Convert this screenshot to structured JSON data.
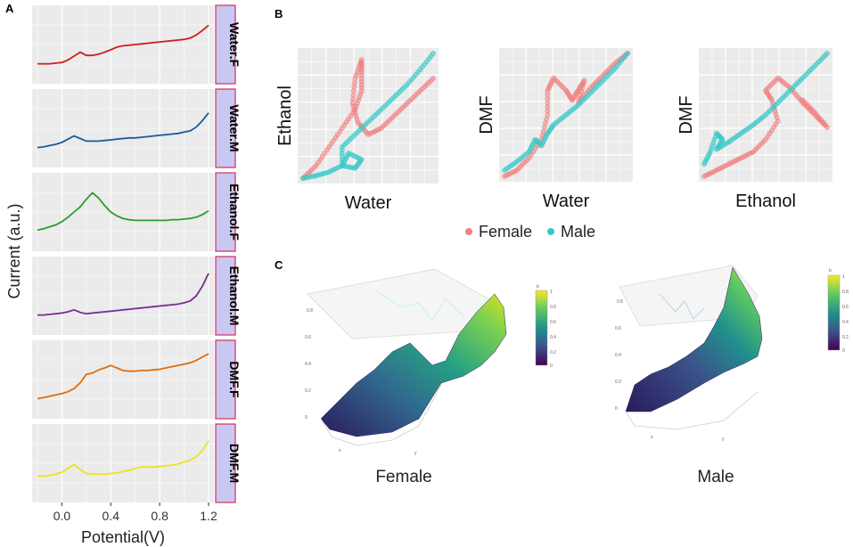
{
  "panel_labels": {
    "a": "A",
    "b": "B",
    "c": "C"
  },
  "panel_a": {
    "xlabel": "Potential(V)",
    "ylabel": "Current (a.u.)",
    "xticks": [
      "0.0",
      "0.4",
      "0.8",
      "1.2"
    ]
  },
  "panel_b": {
    "legend": {
      "female": "Female",
      "male": "Male"
    }
  },
  "panel_c": {
    "surfaces": [
      {
        "title": "Female",
        "colorbar_label": "b",
        "colorbar_ticks": [
          "1",
          "0.8",
          "0.6",
          "0.4",
          "0.2",
          "0"
        ]
      },
      {
        "title": "Male",
        "colorbar_label": "b",
        "colorbar_ticks": [
          "1",
          "0.8",
          "0.6",
          "0.4",
          "0.2",
          "0"
        ]
      }
    ]
  },
  "chart_data": [
    {
      "type": "line",
      "title": "A",
      "xlabel": "Potential(V)",
      "ylabel": "Current (a.u.)",
      "xlim": [
        -0.2,
        1.2
      ],
      "x_ticks": [
        0.0,
        0.4,
        0.8,
        1.2
      ],
      "x": [
        -0.2,
        -0.15,
        -0.1,
        -0.05,
        0.0,
        0.05,
        0.1,
        0.15,
        0.2,
        0.25,
        0.3,
        0.35,
        0.4,
        0.45,
        0.5,
        0.55,
        0.6,
        0.65,
        0.7,
        0.75,
        0.8,
        0.85,
        0.9,
        0.95,
        1.0,
        1.05,
        1.1,
        1.15,
        1.2
      ],
      "series": [
        {
          "name": "Water.F",
          "color": "#cc1f1a",
          "values": [
            0.2,
            0.2,
            0.2,
            0.21,
            0.22,
            0.26,
            0.32,
            0.38,
            0.33,
            0.33,
            0.35,
            0.38,
            0.42,
            0.46,
            0.48,
            0.49,
            0.5,
            0.51,
            0.52,
            0.53,
            0.54,
            0.55,
            0.56,
            0.57,
            0.58,
            0.6,
            0.65,
            0.72,
            0.8
          ]
        },
        {
          "name": "Water.M",
          "color": "#1f5a96",
          "values": [
            0.2,
            0.21,
            0.23,
            0.25,
            0.28,
            0.33,
            0.38,
            0.34,
            0.3,
            0.3,
            0.3,
            0.31,
            0.32,
            0.33,
            0.34,
            0.35,
            0.35,
            0.36,
            0.37,
            0.38,
            0.39,
            0.4,
            0.41,
            0.42,
            0.44,
            0.46,
            0.52,
            0.62,
            0.74
          ]
        },
        {
          "name": "Ethanol.F",
          "color": "#2e9a2e",
          "values": [
            0.22,
            0.24,
            0.27,
            0.3,
            0.35,
            0.42,
            0.5,
            0.58,
            0.7,
            0.8,
            0.72,
            0.6,
            0.5,
            0.44,
            0.4,
            0.38,
            0.37,
            0.37,
            0.37,
            0.37,
            0.37,
            0.37,
            0.38,
            0.38,
            0.39,
            0.4,
            0.42,
            0.46,
            0.52
          ]
        },
        {
          "name": "Ethanol.M",
          "color": "#7b2c8f",
          "values": [
            0.2,
            0.2,
            0.21,
            0.22,
            0.23,
            0.25,
            0.28,
            0.24,
            0.22,
            0.23,
            0.24,
            0.25,
            0.26,
            0.27,
            0.28,
            0.29,
            0.3,
            0.31,
            0.32,
            0.33,
            0.34,
            0.35,
            0.36,
            0.37,
            0.39,
            0.42,
            0.5,
            0.65,
            0.85
          ]
        },
        {
          "name": "DMF.F",
          "color": "#e06c0c",
          "values": [
            0.2,
            0.22,
            0.24,
            0.26,
            0.28,
            0.31,
            0.36,
            0.45,
            0.58,
            0.6,
            0.65,
            0.68,
            0.72,
            0.68,
            0.64,
            0.63,
            0.63,
            0.64,
            0.64,
            0.65,
            0.66,
            0.68,
            0.7,
            0.72,
            0.74,
            0.76,
            0.8,
            0.85,
            0.9
          ]
        },
        {
          "name": "DMF.M",
          "color": "#f2e01e",
          "values": [
            0.3,
            0.3,
            0.31,
            0.33,
            0.36,
            0.42,
            0.48,
            0.4,
            0.34,
            0.33,
            0.33,
            0.33,
            0.34,
            0.35,
            0.37,
            0.39,
            0.42,
            0.44,
            0.44,
            0.44,
            0.45,
            0.46,
            0.47,
            0.49,
            0.52,
            0.55,
            0.6,
            0.7,
            0.85
          ]
        }
      ]
    },
    {
      "type": "scatter",
      "title": "B",
      "panels": [
        {
          "xlabel": "Water",
          "ylabel": "Ethanol",
          "series": [
            {
              "name": "Female",
              "color": "#f08080",
              "x": [
                0.0,
                0.1,
                0.2,
                0.3,
                0.4,
                0.45,
                0.45,
                0.45,
                0.4,
                0.38,
                0.42,
                0.5,
                0.6,
                0.7,
                0.8,
                0.9,
                1.0
              ],
              "y": [
                0.0,
                0.1,
                0.25,
                0.4,
                0.55,
                0.7,
                0.85,
                0.95,
                0.8,
                0.6,
                0.45,
                0.35,
                0.4,
                0.5,
                0.6,
                0.7,
                0.8
              ]
            },
            {
              "name": "Male",
              "color": "#3cc8c8",
              "x": [
                0.0,
                0.1,
                0.2,
                0.3,
                0.35,
                0.45,
                0.4,
                0.3,
                0.3,
                0.4,
                0.5,
                0.6,
                0.7,
                0.8,
                0.9,
                1.0
              ],
              "y": [
                0.0,
                0.02,
                0.05,
                0.1,
                0.2,
                0.15,
                0.08,
                0.1,
                0.25,
                0.35,
                0.45,
                0.55,
                0.65,
                0.75,
                0.87,
                1.0
              ]
            }
          ]
        },
        {
          "xlabel": "Water",
          "ylabel": "DMF",
          "series": [
            {
              "name": "Female",
              "color": "#f08080",
              "x": [
                0.0,
                0.1,
                0.2,
                0.3,
                0.35,
                0.35,
                0.4,
                0.5,
                0.55,
                0.6,
                0.65,
                0.6,
                0.7,
                0.8,
                0.9,
                1.0
              ],
              "y": [
                0.0,
                0.05,
                0.15,
                0.3,
                0.5,
                0.7,
                0.8,
                0.7,
                0.62,
                0.7,
                0.78,
                0.6,
                0.72,
                0.82,
                0.92,
                1.0
              ]
            },
            {
              "name": "Male",
              "color": "#3cc8c8",
              "x": [
                0.0,
                0.1,
                0.2,
                0.25,
                0.3,
                0.35,
                0.4,
                0.5,
                0.6,
                0.7,
                0.8,
                0.9,
                1.0
              ],
              "y": [
                0.05,
                0.12,
                0.2,
                0.3,
                0.25,
                0.35,
                0.42,
                0.5,
                0.58,
                0.68,
                0.78,
                0.88,
                1.0
              ]
            }
          ]
        },
        {
          "xlabel": "Ethanol",
          "ylabel": "DMF",
          "series": [
            {
              "name": "Female",
              "color": "#f08080",
              "x": [
                0.0,
                0.1,
                0.2,
                0.3,
                0.4,
                0.5,
                0.6,
                0.55,
                0.5,
                0.6,
                0.7,
                0.8,
                0.9,
                1.0,
                0.9,
                0.8
              ],
              "y": [
                0.0,
                0.05,
                0.1,
                0.15,
                0.2,
                0.3,
                0.45,
                0.62,
                0.7,
                0.8,
                0.72,
                0.6,
                0.5,
                0.4,
                0.52,
                0.62
              ]
            },
            {
              "name": "Male",
              "color": "#3cc8c8",
              "x": [
                0.0,
                0.05,
                0.1,
                0.15,
                0.1,
                0.2,
                0.3,
                0.4,
                0.5,
                0.6,
                0.7,
                0.8,
                0.9,
                1.0
              ],
              "y": [
                0.1,
                0.2,
                0.35,
                0.3,
                0.22,
                0.28,
                0.35,
                0.42,
                0.5,
                0.6,
                0.7,
                0.8,
                0.9,
                1.0
              ]
            }
          ]
        }
      ]
    }
  ]
}
